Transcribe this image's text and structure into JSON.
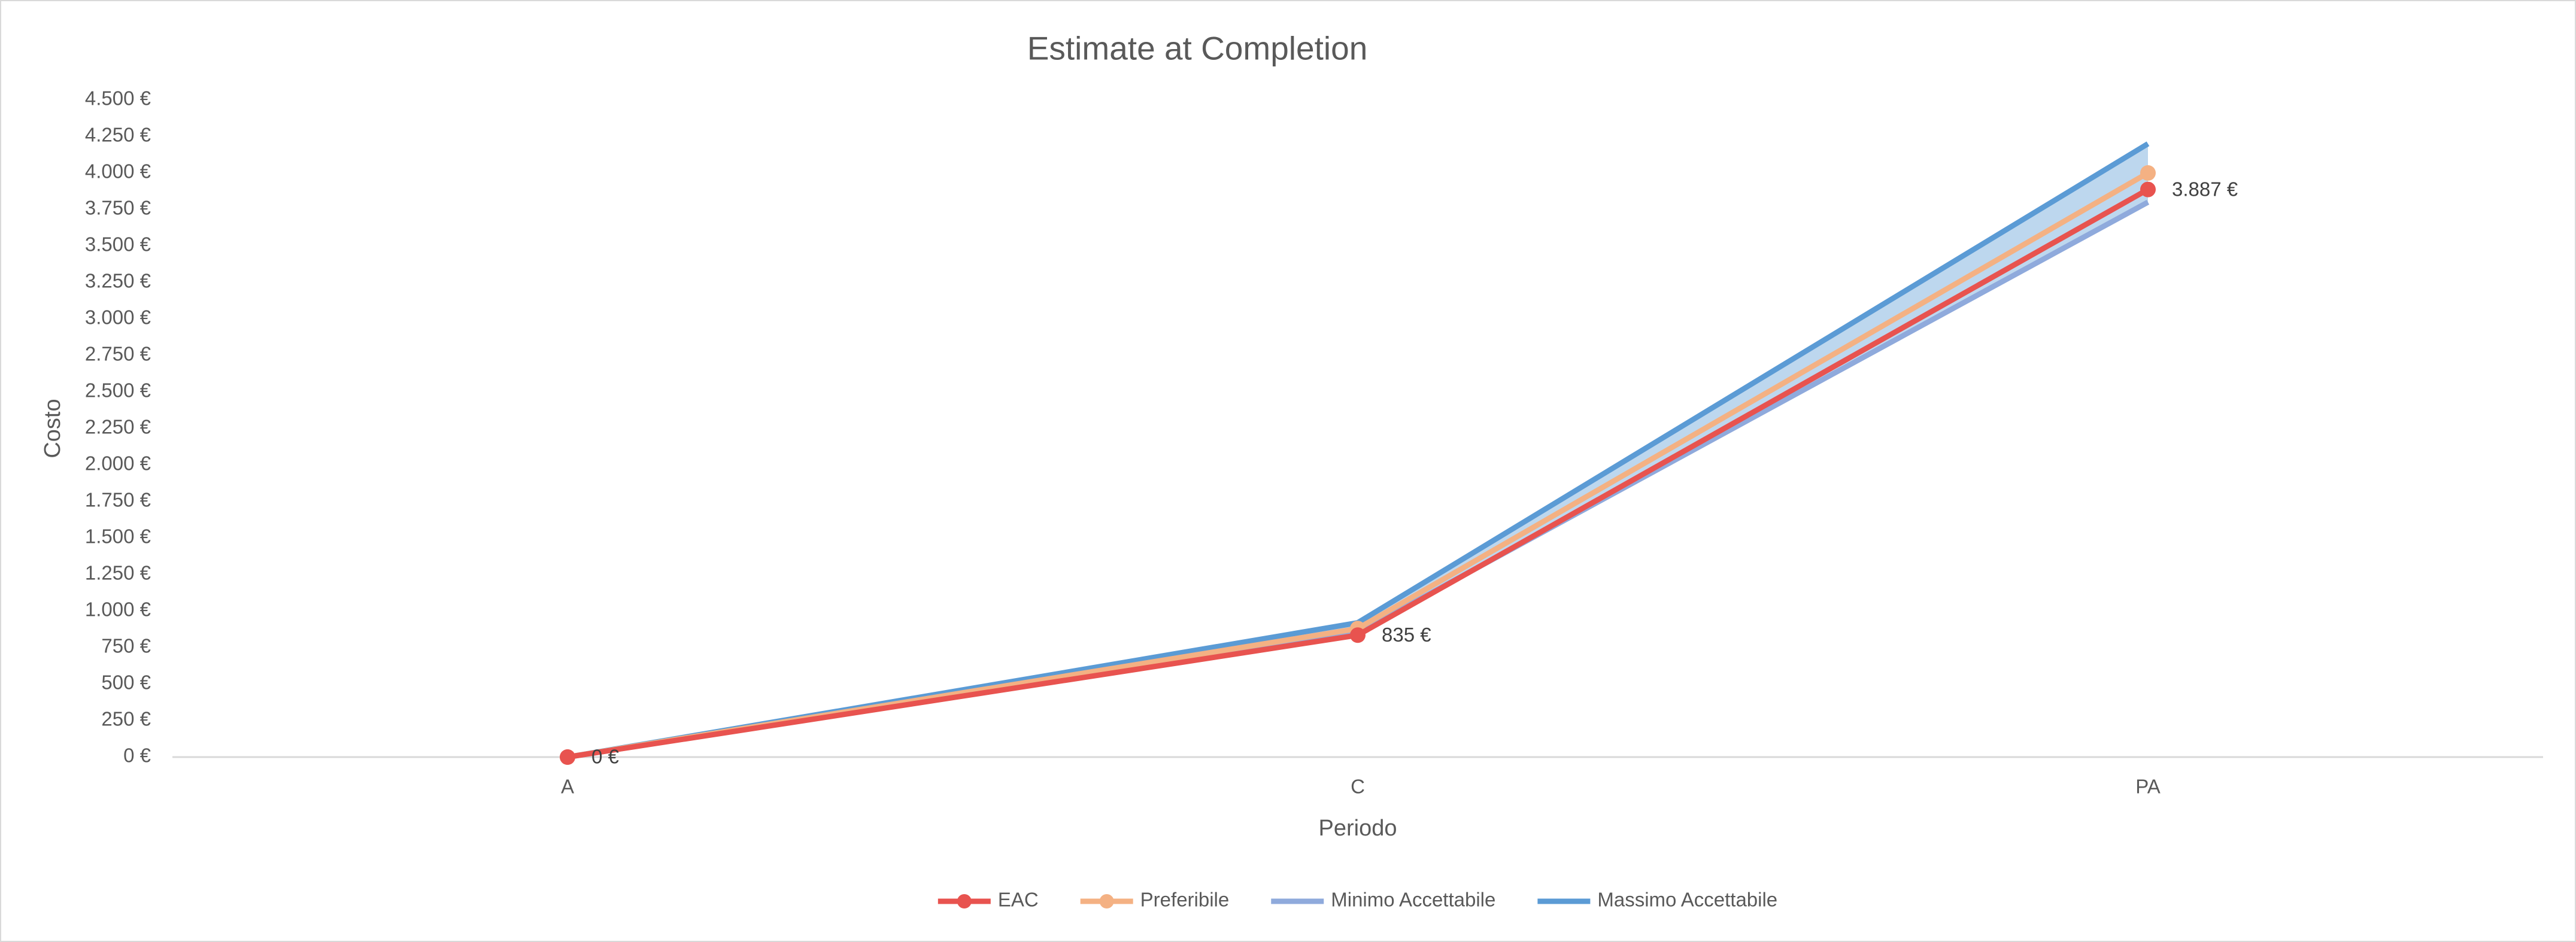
{
  "chart_data": {
    "type": "line",
    "title": "Estimate at Completion",
    "x_label": "Periodo",
    "y_label": "Costo",
    "categories": [
      "A",
      "C",
      "PA"
    ],
    "series": [
      {
        "name": "EAC",
        "color": "#e8534f",
        "values": [
          0,
          835,
          3887
        ],
        "value_labels": [
          "0 €",
          "835 €",
          "3.887 €"
        ],
        "markers": true
      },
      {
        "name": "Preferibile",
        "color": "#f4b183",
        "values": [
          0,
          880,
          4000
        ],
        "markers": true
      },
      {
        "name": "Minimo Accettabile",
        "color": "#8faadc",
        "values": [
          0,
          850,
          3800
        ],
        "markers": false
      },
      {
        "name": "Massimo Accettabile",
        "color": "#5b9bd5",
        "values": [
          0,
          920,
          4200
        ],
        "markers": false
      }
    ],
    "band_color": "#bdd7ee",
    "ylim": [
      0,
      4500
    ],
    "yticks": [
      {
        "value": 0,
        "label": "0 €"
      },
      {
        "value": 250,
        "label": "250 €"
      },
      {
        "value": 500,
        "label": "500 €"
      },
      {
        "value": 750,
        "label": "750 €"
      },
      {
        "value": 1000,
        "label": "1.000 €"
      },
      {
        "value": 1250,
        "label": "1.250 €"
      },
      {
        "value": 1500,
        "label": "1.500 €"
      },
      {
        "value": 1750,
        "label": "1.750 €"
      },
      {
        "value": 2000,
        "label": "2.000 €"
      },
      {
        "value": 2250,
        "label": "2.250 €"
      },
      {
        "value": 2500,
        "label": "2.500 €"
      },
      {
        "value": 2750,
        "label": "2.750 €"
      },
      {
        "value": 3000,
        "label": "3.000 €"
      },
      {
        "value": 3250,
        "label": "3.250 €"
      },
      {
        "value": 3500,
        "label": "3.500 €"
      },
      {
        "value": 3750,
        "label": "3.750 €"
      },
      {
        "value": 4000,
        "label": "4.000 €"
      },
      {
        "value": 4250,
        "label": "4.250 €"
      },
      {
        "value": 4500,
        "label": "4.500 €"
      }
    ],
    "grid": false,
    "legend": "bottom"
  }
}
